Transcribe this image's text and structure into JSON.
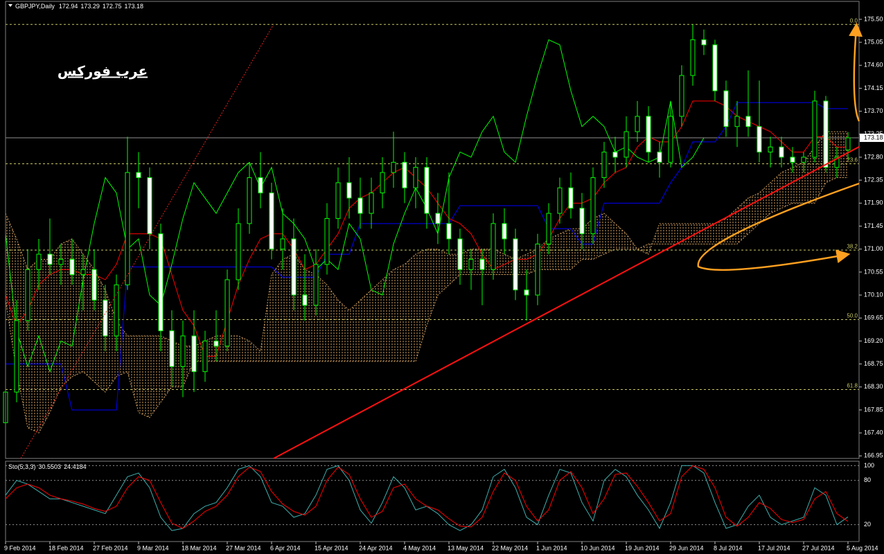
{
  "chart_data": {
    "type": "candlestick",
    "title": "GBPJPY,Daily",
    "watermark": "عرب فوركس",
    "categories": [
      "9 Feb 2014",
      null,
      null,
      null,
      "18 Feb 2014",
      null,
      null,
      null,
      "27 Feb 2014",
      null,
      null,
      null,
      "9 Mar 2014",
      null,
      null,
      null,
      "18 Mar 2014",
      null,
      null,
      null,
      "27 Mar 2014",
      null,
      null,
      null,
      "6 Apr 2014",
      null,
      null,
      null,
      "15 Apr 2014",
      null,
      null,
      null,
      "24 Apr 2014",
      null,
      null,
      null,
      "4 May 2014",
      null,
      null,
      null,
      "13 May 2014",
      null,
      null,
      null,
      "22 May 2014",
      null,
      null,
      null,
      "1 Jun 2014",
      null,
      null,
      null,
      "10 Jun 2014",
      null,
      null,
      null,
      "19 Jun 2014",
      null,
      null,
      null,
      "29 Jun 2014",
      null,
      null,
      null,
      "8 Jul 2014",
      null,
      null,
      null,
      "17 Jul 2014",
      null,
      null,
      null,
      "27 Jul 2014",
      null,
      null,
      null,
      "5 Aug 2014"
    ],
    "open": [
      167.6,
      168.2,
      169.6,
      170.6,
      170.9,
      170.7,
      170.8,
      170.5,
      170.6,
      170.0,
      169.3,
      170.3,
      172.5,
      172.4,
      171.3,
      169.4,
      168.7,
      169.3,
      168.6,
      169.2,
      169.1,
      170.4,
      171.5,
      172.4,
      172.1,
      171.0,
      171.2,
      170.1,
      169.9,
      170.7,
      171.6,
      172.3,
      172.0,
      171.7,
      172.1,
      172.5,
      172.7,
      172.2,
      172.6,
      171.7,
      171.5,
      171.2,
      170.6,
      170.8,
      170.6,
      171.5,
      171.2,
      170.2,
      170.1,
      171.1,
      171.7,
      172.2,
      171.8,
      171.3,
      172.4,
      172.9,
      172.8,
      173.3,
      173.6,
      172.9,
      172.7,
      173.6,
      174.4,
      175.1,
      175.0,
      174.1,
      173.4,
      173.6,
      173.4,
      172.9,
      173.0,
      172.8,
      172.7,
      172.8,
      173.9,
      172.6,
      172.94
    ],
    "high": [
      168.4,
      170.0,
      171.0,
      171.2,
      171.6,
      171.1,
      171.2,
      170.9,
      171.0,
      170.3,
      170.5,
      173.2,
      172.9,
      172.6,
      171.5,
      169.8,
      169.6,
      169.8,
      169.4,
      169.8,
      170.6,
      171.8,
      172.7,
      172.9,
      172.3,
      171.8,
      171.6,
      170.9,
      171.0,
      171.9,
      172.6,
      172.8,
      172.4,
      172.4,
      172.8,
      173.3,
      172.9,
      172.8,
      172.8,
      172.1,
      172.5,
      171.4,
      171.0,
      171.0,
      171.7,
      171.8,
      171.4,
      170.6,
      171.3,
      171.9,
      172.4,
      172.5,
      172.1,
      172.6,
      173.1,
      173.2,
      173.6,
      173.9,
      173.8,
      173.1,
      173.9,
      174.6,
      175.4,
      175.3,
      175.1,
      174.3,
      173.9,
      174.5,
      174.3,
      173.2,
      173.2,
      173.0,
      172.9,
      174.1,
      174.0,
      173.0,
      173.29
    ],
    "low": [
      167.3,
      168.0,
      169.4,
      170.2,
      170.5,
      170.3,
      170.3,
      169.8,
      169.8,
      169.0,
      169.0,
      170.2,
      171.8,
      171.0,
      169.0,
      168.3,
      168.1,
      168.2,
      168.4,
      168.8,
      169.0,
      170.2,
      171.3,
      171.8,
      170.8,
      170.6,
      169.8,
      169.6,
      169.7,
      170.5,
      171.4,
      171.6,
      171.4,
      171.4,
      171.8,
      172.2,
      171.9,
      171.8,
      171.4,
      171.1,
      170.9,
      170.3,
      170.2,
      169.9,
      170.4,
      170.9,
      170.0,
      169.6,
      169.9,
      170.9,
      171.5,
      171.6,
      171.0,
      171.1,
      172.2,
      172.5,
      172.6,
      173.1,
      172.7,
      172.4,
      172.6,
      173.4,
      174.2,
      174.8,
      173.9,
      173.2,
      173.0,
      173.2,
      172.7,
      172.6,
      172.6,
      172.5,
      172.5,
      172.7,
      172.5,
      172.4,
      172.75
    ],
    "close": [
      168.2,
      169.6,
      170.6,
      170.9,
      170.7,
      170.8,
      170.5,
      170.6,
      170.0,
      169.3,
      170.3,
      172.5,
      172.4,
      171.3,
      169.4,
      168.7,
      169.3,
      168.6,
      169.2,
      169.1,
      170.4,
      171.5,
      172.4,
      172.1,
      171.0,
      171.2,
      170.1,
      169.9,
      170.7,
      171.6,
      172.3,
      172.0,
      171.7,
      172.1,
      172.5,
      172.7,
      172.2,
      172.6,
      171.7,
      171.5,
      171.2,
      170.6,
      170.8,
      170.6,
      171.5,
      171.2,
      170.2,
      170.1,
      171.1,
      171.7,
      172.2,
      171.8,
      171.3,
      172.4,
      172.9,
      172.8,
      173.3,
      173.6,
      172.9,
      172.7,
      173.6,
      174.4,
      175.1,
      175.0,
      174.1,
      173.4,
      173.6,
      173.4,
      172.9,
      173.0,
      172.8,
      172.7,
      172.8,
      173.9,
      172.6,
      172.8,
      173.18
    ],
    "candle_colors": {
      "up": "#000000",
      "down": "#ffffff",
      "outline": "#00ff00"
    },
    "ylim": [
      166.9,
      175.58
    ],
    "yticks": [
      {
        "value": 175.5,
        "label": "175.50"
      },
      {
        "value": 175.05,
        "label": "175.05"
      },
      {
        "value": 174.6,
        "label": "174.60"
      },
      {
        "value": 174.15,
        "label": "174.15"
      },
      {
        "value": 173.7,
        "label": "173.70"
      },
      {
        "value": 173.25,
        "label": "173.25"
      },
      {
        "value": 172.8,
        "label": "172.80"
      },
      {
        "value": 172.35,
        "label": "172.35"
      },
      {
        "value": 171.9,
        "label": "171.90"
      },
      {
        "value": 171.45,
        "label": "171.45"
      },
      {
        "value": 171.0,
        "label": "171.00"
      },
      {
        "value": 170.55,
        "label": "170.55"
      },
      {
        "value": 170.1,
        "label": "170.10"
      },
      {
        "value": 169.65,
        "label": "169.65"
      },
      {
        "value": 169.2,
        "label": "169.20"
      },
      {
        "value": 168.75,
        "label": "168.75"
      },
      {
        "value": 168.3,
        "label": "168.30"
      },
      {
        "value": 167.85,
        "label": "167.85"
      },
      {
        "value": 167.4,
        "label": "167.40"
      },
      {
        "value": 166.95,
        "label": "166.95"
      }
    ],
    "lines": [
      {
        "color": "#ff0000",
        "values": [
          170.1,
          169.5,
          169.8,
          170.3,
          170.5,
          170.6,
          170.6,
          170.5,
          170.5,
          170.4,
          170.7,
          171.3,
          171.3,
          171.3,
          171.2,
          170.5,
          169.8,
          169.5,
          168.9,
          168.9,
          169.6,
          170.3,
          170.8,
          171.2,
          171.3,
          171.3,
          171.0,
          170.6,
          170.7,
          171.0,
          171.3,
          171.8,
          172.0,
          172.1,
          172.3,
          172.5,
          172.6,
          172.4,
          172.2,
          171.9,
          171.6,
          171.5,
          171.3,
          170.9,
          170.6,
          170.7,
          170.8,
          170.8,
          170.9,
          171.2,
          171.6,
          171.9,
          171.9,
          172.0,
          172.3,
          172.5,
          172.6,
          173.0,
          173.2,
          173.1,
          173.1,
          173.4,
          173.9,
          173.9,
          173.9,
          173.8,
          173.6,
          173.5,
          173.4,
          173.3,
          173.1,
          172.9,
          172.9,
          173.2,
          173.2,
          173.0,
          173.0
        ]
      },
      {
        "color": "#0000ff",
        "values": [
          168.75,
          168.75,
          168.75,
          168.75,
          168.75,
          168.75,
          167.85,
          167.85,
          167.85,
          167.85,
          167.85,
          170.65,
          170.65,
          170.65,
          170.65,
          170.65,
          170.65,
          170.65,
          170.65,
          170.65,
          170.65,
          170.65,
          170.65,
          170.65,
          170.65,
          170.45,
          170.45,
          170.45,
          170.45,
          170.9,
          170.9,
          170.9,
          171.5,
          171.5,
          171.5,
          171.5,
          171.5,
          171.5,
          171.5,
          171.5,
          171.5,
          171.85,
          171.85,
          171.85,
          171.85,
          171.85,
          171.85,
          171.85,
          171.85,
          171.4,
          171.4,
          171.4,
          171.1,
          171.1,
          171.9,
          171.9,
          171.9,
          171.9,
          171.9,
          171.9,
          172.3,
          172.6,
          173.1,
          173.1,
          173.1,
          173.4,
          173.87,
          173.87,
          173.87,
          173.87,
          173.87,
          173.87,
          173.87,
          173.87,
          173.75,
          173.75,
          173.75
        ]
      },
      {
        "color": "#00ff00",
        "values": [
          171.3,
          169.4,
          168.7,
          169.3,
          168.6,
          169.2,
          169.1,
          170.4,
          171.5,
          172.4,
          172.1,
          171.0,
          171.2,
          170.1,
          169.9,
          170.7,
          171.6,
          172.3,
          172.0,
          171.7,
          172.1,
          172.5,
          172.7,
          172.2,
          172.6,
          171.7,
          171.5,
          171.2,
          170.6,
          170.8,
          170.6,
          171.5,
          171.2,
          170.2,
          170.1,
          171.1,
          171.7,
          172.2,
          171.8,
          171.3,
          172.4,
          172.9,
          172.8,
          173.3,
          173.6,
          172.9,
          172.7,
          173.6,
          174.4,
          175.1,
          175.0,
          174.1,
          173.4,
          173.6,
          173.4,
          172.9,
          173.0,
          172.8,
          172.7,
          172.8,
          173.9,
          172.6,
          172.8,
          173.18,
          null,
          null,
          null,
          null,
          null,
          null,
          null,
          null,
          null,
          null,
          null,
          null,
          null
        ]
      }
    ],
    "cloud": {
      "color": "#d2a060",
      "span_a": [
        171.7,
        171.2,
        170.6,
        170.8,
        170.8,
        171.1,
        171.2,
        170.9,
        170.6,
        170.2,
        169.6,
        169.3,
        169.3,
        169.3,
        169.3,
        169.2,
        169.1,
        169.1,
        169.2,
        169.3,
        169.3,
        169.3,
        169.2,
        169.0,
        170.5,
        170.8,
        170.9,
        170.6,
        170.5,
        170.3,
        170.0,
        169.8,
        170.0,
        170.2,
        170.4,
        170.6,
        170.7,
        170.9,
        171.0,
        171.0,
        170.9,
        170.9,
        171.0,
        171.0,
        171.0,
        170.9,
        170.8,
        170.9,
        171.0,
        171.2,
        171.3,
        171.4,
        171.4,
        171.6,
        171.7,
        171.5,
        171.3,
        171.0,
        170.9,
        171.5,
        171.5,
        171.5,
        171.5,
        171.5,
        171.5,
        171.6,
        171.8,
        172.0,
        172.1,
        172.3,
        172.5,
        172.6,
        172.7,
        173.0,
        173.3,
        173.3,
        173.3
      ],
      "span_b": [
        170.0,
        168.6,
        167.5,
        167.4,
        167.8,
        168.3,
        168.5,
        168.6,
        168.4,
        168.2,
        168.5,
        168.6,
        167.8,
        167.7,
        168.0,
        168.3,
        168.3,
        168.8,
        168.8,
        168.8,
        168.8,
        168.8,
        168.8,
        168.8,
        168.8,
        168.8,
        168.8,
        168.8,
        168.8,
        168.8,
        168.8,
        168.8,
        168.8,
        168.8,
        168.8,
        168.8,
        168.8,
        168.8,
        169.5,
        170.1,
        170.3,
        170.5,
        170.5,
        170.5,
        170.5,
        170.5,
        170.5,
        170.5,
        170.6,
        170.6,
        170.6,
        170.6,
        170.8,
        170.8,
        170.9,
        171.0,
        171.0,
        171.0,
        171.1,
        171.1,
        171.1,
        171.1,
        171.1,
        171.1,
        171.1,
        171.1,
        171.1,
        171.3,
        171.5,
        171.7,
        171.8,
        171.9,
        171.9,
        171.9,
        172.3,
        172.4,
        172.4
      ]
    },
    "fib_color": "#c8c864",
    "fib_levels": [
      {
        "label": "0.0",
        "price": 175.4
      },
      {
        "label": "23.6",
        "price": 172.67
      },
      {
        "label": "38.2",
        "price": 170.98
      },
      {
        "label": "50.0",
        "price": 169.62
      },
      {
        "label": "61.8",
        "price": 168.25
      }
    ],
    "stochastic": {
      "title": "Sto(5,3,3)",
      "ylim": [
        0,
        106
      ],
      "yticks": [
        100,
        80,
        20
      ],
      "series": [
        {
          "color": "#40b0b0",
          "values": [
            60,
            80,
            75,
            65,
            55,
            55,
            50,
            45,
            40,
            35,
            60,
            85,
            90,
            70,
            30,
            12,
            15,
            35,
            45,
            50,
            70,
            95,
            100,
            85,
            50,
            45,
            30,
            35,
            60,
            95,
            100,
            80,
            40,
            22,
            50,
            85,
            70,
            40,
            45,
            35,
            20,
            12,
            20,
            40,
            85,
            95,
            70,
            30,
            20,
            60,
            95,
            90,
            50,
            25,
            80,
            95,
            85,
            60,
            40,
            15,
            50,
            100,
            100,
            90,
            50,
            15,
            20,
            45,
            60,
            30,
            20,
            25,
            30,
            70,
            60,
            20,
            30.5503
          ]
        },
        {
          "color": "#ff0000",
          "values": [
            55,
            70,
            75,
            70,
            60,
            55,
            52,
            48,
            42,
            38,
            45,
            70,
            85,
            80,
            50,
            22,
            15,
            25,
            38,
            45,
            60,
            85,
            98,
            92,
            65,
            48,
            38,
            33,
            45,
            80,
            98,
            88,
            55,
            30,
            38,
            70,
            75,
            55,
            45,
            40,
            28,
            18,
            17,
            30,
            65,
            90,
            80,
            45,
            25,
            40,
            80,
            92,
            70,
            35,
            55,
            88,
            90,
            72,
            50,
            25,
            35,
            85,
            100,
            95,
            70,
            30,
            18,
            30,
            50,
            42,
            27,
            23,
            27,
            55,
            65,
            35,
            24.4184
          ]
        }
      ]
    }
  }
}
